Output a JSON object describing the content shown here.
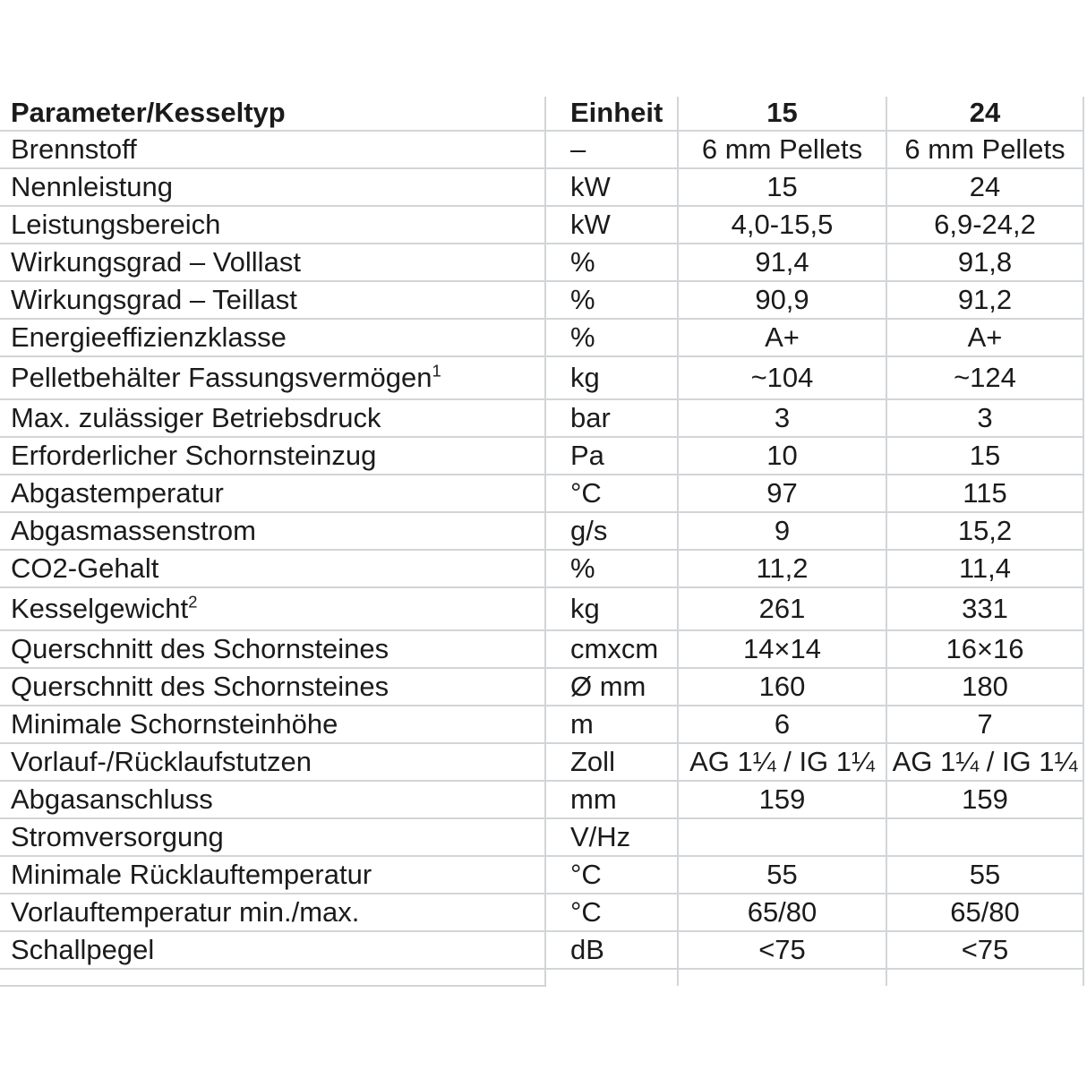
{
  "table": {
    "header": {
      "parameter": "Parameter/Kesseltyp",
      "unit": "Einheit",
      "model_15": "15",
      "model_24": "24"
    },
    "rows": [
      {
        "label": "Brennstoff",
        "sup": "",
        "unit": "–",
        "value_15": "6 mm Pellets",
        "value_24": "6 mm Pellets",
        "tall": false
      },
      {
        "label": "Nennleistung",
        "sup": "",
        "unit": "kW",
        "value_15": "15",
        "value_24": "24",
        "tall": false
      },
      {
        "label": "Leistungsbereich",
        "sup": "",
        "unit": "kW",
        "value_15": "4,0-15,5",
        "value_24": "6,9-24,2",
        "tall": false
      },
      {
        "label": "Wirkungsgrad – Volllast",
        "sup": "",
        "unit": "%",
        "value_15": "91,4",
        "value_24": "91,8",
        "tall": false
      },
      {
        "label": "Wirkungsgrad – Teillast",
        "sup": "",
        "unit": "%",
        "value_15": "90,9",
        "value_24": "91,2",
        "tall": false
      },
      {
        "label": "Energieeffizienzklasse",
        "sup": "",
        "unit": "%",
        "value_15": "A+",
        "value_24": "A+",
        "tall": false
      },
      {
        "label": "Pelletbehälter Fassungsvermögen",
        "sup": "1",
        "unit": "kg",
        "value_15": "~104",
        "value_24": "~124",
        "tall": true
      },
      {
        "label": "Max. zulässiger Betriebsdruck",
        "sup": "",
        "unit": "bar",
        "value_15": "3",
        "value_24": "3",
        "tall": false
      },
      {
        "label": "Erforderlicher Schornsteinzug",
        "sup": "",
        "unit": "Pa",
        "value_15": "10",
        "value_24": "15",
        "tall": false
      },
      {
        "label": "Abgastemperatur",
        "sup": "",
        "unit": "°C",
        "value_15": "97",
        "value_24": "115",
        "tall": false
      },
      {
        "label": "Abgasmassenstrom",
        "sup": "",
        "unit": "g/s",
        "value_15": "9",
        "value_24": "15,2",
        "tall": false
      },
      {
        "label": "CO2-Gehalt",
        "sup": "",
        "unit": "%",
        "value_15": "11,2",
        "value_24": "11,4",
        "tall": false
      },
      {
        "label": "Kesselgewicht",
        "sup": "2",
        "unit": "kg",
        "value_15": "261",
        "value_24": "331",
        "tall": true
      },
      {
        "label": "Querschnitt des Schornsteines",
        "sup": "",
        "unit": "cmxcm",
        "value_15": "14×14",
        "value_24": "16×16",
        "tall": false
      },
      {
        "label": "Querschnitt des Schornsteines",
        "sup": "",
        "unit": "Ø mm",
        "value_15": "160",
        "value_24": "180",
        "tall": false
      },
      {
        "label": "Minimale Schornsteinhöhe",
        "sup": "",
        "unit": "m",
        "value_15": "6",
        "value_24": "7",
        "tall": false
      },
      {
        "label": "Vorlauf-/Rücklaufstutzen",
        "sup": "",
        "unit": "Zoll",
        "value_15": "AG 1¼ / IG 1¼",
        "value_24": "AG 1¼ / IG 1¼",
        "tall": false
      },
      {
        "label": "Abgasanschluss",
        "sup": "",
        "unit": "mm",
        "value_15": "159",
        "value_24": "159",
        "tall": false
      },
      {
        "label": "Stromversorgung",
        "sup": "",
        "unit": "V/Hz",
        "value_15": "",
        "value_24": "",
        "tall": false
      },
      {
        "label": "Minimale Rücklauftemperatur",
        "sup": "",
        "unit": "°C",
        "value_15": "55",
        "value_24": "55",
        "tall": false
      },
      {
        "label": "Vorlauftemperatur min./max.",
        "sup": "",
        "unit": "°C",
        "value_15": "65/80",
        "value_24": "65/80",
        "tall": false
      },
      {
        "label": "Schallpegel",
        "sup": "",
        "unit": "dB",
        "value_15": "<75",
        "value_24": "<75",
        "tall": false
      }
    ]
  }
}
